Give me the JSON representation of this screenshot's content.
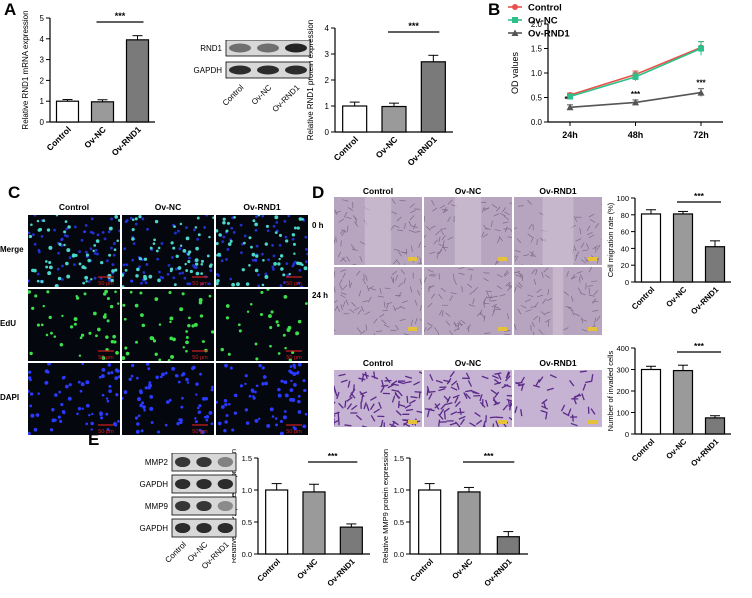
{
  "panels": {
    "A": "A",
    "B": "B",
    "C": "C",
    "D": "D",
    "E": "E"
  },
  "colors": {
    "bar_control": "#ffffff",
    "bar_ovnc": "#9a9a9a",
    "bar_ovrnd1": "#7a7a7a",
    "line_control": "#e8524a",
    "line_ovnc": "#2ec08a",
    "line_ovrnd1": "#555555",
    "fluor_bg": "#05070f",
    "merge_cell": "#4ad6c8",
    "edu_cell": "#3be04a",
    "dapi_cell": "#2a3aff",
    "wound_bg": "#b7a4bf",
    "invade_bg": "#c6b2d2",
    "invade_cell": "#5a2a8a",
    "scale_bar": "#d02020"
  },
  "panelA": {
    "western_labels": [
      "RND1",
      "GAPDH"
    ],
    "lane_labels": [
      "Control",
      "Ov-NC",
      "Ov-RND1"
    ]
  },
  "panelC": {
    "columns": [
      "Control",
      "Ov-NC",
      "Ov-RND1"
    ],
    "rows": [
      "Merge",
      "EdU",
      "DAPI"
    ],
    "scale": "50 μm"
  },
  "panelD": {
    "columns": [
      "Control",
      "Ov-NC",
      "Ov-RND1"
    ],
    "rows": [
      "0 h",
      "24 h"
    ],
    "invade_columns": [
      "Control",
      "Ov-NC",
      "Ov-RND1"
    ],
    "scale": "50 μm"
  },
  "panelE": {
    "western_labels": [
      "MMP2",
      "GAPDH",
      "MMP9",
      "GAPDH"
    ],
    "lane_labels": [
      "Control",
      "Ov-NC",
      "Ov-RND1"
    ]
  },
  "chart_data": [
    {
      "id": "A1",
      "type": "bar",
      "categories": [
        "Control",
        "Ov-NC",
        "Ov-RND1"
      ],
      "values": [
        1.0,
        0.97,
        3.95
      ],
      "errors": [
        0.08,
        0.1,
        0.2
      ],
      "ylabel": "Relative RND1 mRNA expression",
      "ylim": [
        0,
        5
      ],
      "yticks": [
        0,
        1,
        2,
        3,
        4,
        5
      ],
      "significance": "***"
    },
    {
      "id": "A2",
      "type": "bar",
      "categories": [
        "Control",
        "Ov-NC",
        "Ov-RND1"
      ],
      "values": [
        1.0,
        0.98,
        2.7
      ],
      "errors": [
        0.15,
        0.13,
        0.25
      ],
      "ylabel": "Relative RND1 protein expression",
      "ylim": [
        0,
        4
      ],
      "yticks": [
        0,
        1,
        2,
        3,
        4
      ],
      "significance": "***"
    },
    {
      "id": "B",
      "type": "line",
      "x": [
        "24h",
        "48h",
        "72h"
      ],
      "series": [
        {
          "name": "Control",
          "values": [
            0.55,
            0.97,
            1.52
          ],
          "errors": [
            0.04,
            0.07,
            0.12
          ]
        },
        {
          "name": "Ov-NC",
          "values": [
            0.52,
            0.92,
            1.5
          ],
          "errors": [
            0.05,
            0.08,
            0.14
          ]
        },
        {
          "name": "Ov-RND1",
          "values": [
            0.3,
            0.4,
            0.6
          ],
          "errors": [
            0.05,
            0.05,
            0.08
          ]
        }
      ],
      "ylabel": "OD values",
      "ylim": [
        0,
        2
      ],
      "yticks": [
        "0.0",
        "0.5",
        "1.0",
        "1.5",
        "2.0"
      ],
      "annotations": [
        "*",
        "***",
        "***"
      ]
    },
    {
      "id": "D1",
      "type": "bar",
      "categories": [
        "Control",
        "Ov-NC",
        "Ov-RND1"
      ],
      "values": [
        81,
        81,
        42
      ],
      "errors": [
        5,
        3,
        7
      ],
      "ylabel": "Cell migration rate (%)",
      "ylim": [
        0,
        100
      ],
      "yticks": [
        0,
        20,
        40,
        60,
        80,
        100
      ],
      "significance": "***"
    },
    {
      "id": "D2",
      "type": "bar",
      "categories": [
        "Control",
        "Ov-NC",
        "Ov-RND1"
      ],
      "values": [
        300,
        295,
        75
      ],
      "errors": [
        15,
        25,
        10
      ],
      "ylabel": "Number of invaded cells",
      "ylim": [
        0,
        400
      ],
      "yticks": [
        0,
        100,
        200,
        300,
        400
      ],
      "significance": "***"
    },
    {
      "id": "E1",
      "type": "bar",
      "categories": [
        "Control",
        "Ov-NC",
        "Ov-RND1"
      ],
      "values": [
        1.0,
        0.97,
        0.42
      ],
      "errors": [
        0.1,
        0.12,
        0.05
      ],
      "ylabel": "Relative MMP2 protein expression",
      "ylim": [
        0,
        1.5
      ],
      "yticks": [
        "0.0",
        "0.5",
        "1.0",
        "1.5"
      ],
      "significance": "***"
    },
    {
      "id": "E2",
      "type": "bar",
      "categories": [
        "Control",
        "Ov-NC",
        "Ov-RND1"
      ],
      "values": [
        1.0,
        0.97,
        0.27
      ],
      "errors": [
        0.1,
        0.07,
        0.08
      ],
      "ylabel": "Relative MMP9 protein expression",
      "ylim": [
        0,
        1.5
      ],
      "yticks": [
        "0.0",
        "0.5",
        "1.0",
        "1.5"
      ],
      "significance": "***"
    }
  ]
}
